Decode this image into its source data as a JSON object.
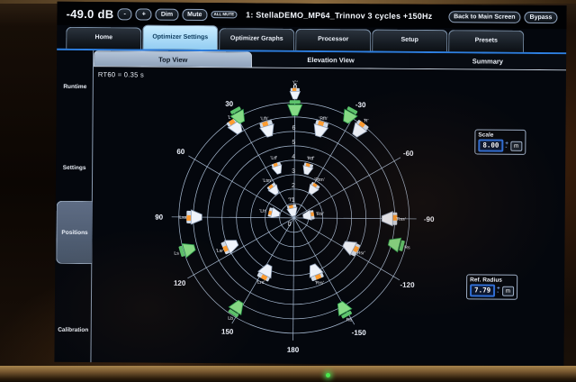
{
  "topbar": {
    "volume_db": "-49.0 dB",
    "minus_label": "-",
    "plus_label": "+",
    "dim_label": "Dim",
    "mute_label": "Mute",
    "mute_all_label": "ALL MUTE",
    "preset_title": "1: StellaDEMO_MP64_Trinnov 3 cycles +150Hz",
    "back_label": "Back to Main Screen",
    "bypass_label": "Bypass"
  },
  "main_tabs": [
    {
      "label": "Home",
      "selected": false
    },
    {
      "label": "Optimizer Settings",
      "selected": true
    },
    {
      "label": "Optimizer Graphs",
      "selected": false
    },
    {
      "label": "Processor",
      "selected": false
    },
    {
      "label": "Setup",
      "selected": false
    },
    {
      "label": "Presets",
      "selected": false
    }
  ],
  "sidebar": {
    "items": [
      {
        "label": "Runtime",
        "selected": false
      },
      {
        "label": "Settings",
        "selected": false
      },
      {
        "label": "Positions",
        "selected": true
      },
      {
        "label": "Calibration",
        "selected": false
      }
    ]
  },
  "view_tabs": [
    {
      "label": "Top View",
      "selected": true
    },
    {
      "label": "Elevation View",
      "selected": false
    },
    {
      "label": "Summary",
      "selected": false
    }
  ],
  "plot": {
    "rt60_text": "RT60 = 0.35 s",
    "ring_labels": [
      "0",
      "1",
      "2",
      "3",
      "4",
      "5",
      "6",
      "7"
    ],
    "rings_total": 8,
    "grid_color": "#a7bad2",
    "angle_labels": [
      {
        "t": "0",
        "a": 0
      },
      {
        "t": "30",
        "a": 30
      },
      {
        "t": "60",
        "a": 60
      },
      {
        "t": "90",
        "a": 90
      },
      {
        "t": "120",
        "a": 120
      },
      {
        "t": "150",
        "a": 150
      },
      {
        "t": "180",
        "a": 180
      },
      {
        "t": "-30",
        "a": -30
      },
      {
        "t": "-60",
        "a": -60
      },
      {
        "t": "-90",
        "a": -90
      },
      {
        "t": "-120",
        "a": -120
      },
      {
        "t": "-150",
        "a": -150
      }
    ],
    "speakers": [
      {
        "label": "'C'",
        "angle": 0,
        "radius": 8.6,
        "type": "white",
        "small": true
      },
      {
        "label": "",
        "angle": 0,
        "radius": 7.6,
        "type": "green",
        "small": false
      },
      {
        "label": "'L'",
        "angle": 33,
        "radius": 7.5,
        "type": "white",
        "small": false
      },
      {
        "label": "",
        "angle": 29,
        "radius": 8.05,
        "type": "green",
        "small": false
      },
      {
        "label": "'R'",
        "angle": -36,
        "radius": 7.6,
        "type": "white",
        "small": false
      },
      {
        "label": "",
        "angle": -28,
        "radius": 8.05,
        "type": "green",
        "small": false
      },
      {
        "label": "'Lfh'",
        "angle": 17,
        "radius": 6.4,
        "type": "white",
        "small": false
      },
      {
        "label": "'Rfh'",
        "angle": -16,
        "radius": 6.4,
        "type": "white",
        "small": false
      },
      {
        "label": "'Lss'",
        "angle": 90,
        "radius": 6.9,
        "type": "white",
        "small": false
      },
      {
        "label": "'Rss'",
        "angle": -90,
        "radius": 6.6,
        "type": "white",
        "small": false
      },
      {
        "label": "Ls",
        "angle": 107,
        "radius": 7.7,
        "type": "green",
        "small": false
      },
      {
        "label": "Rs",
        "angle": -104,
        "radius": 7.3,
        "type": "green",
        "small": false
      },
      {
        "label": "'Lsr'",
        "angle": 114,
        "radius": 4.8,
        "type": "white",
        "small": false
      },
      {
        "label": "'Rsr'",
        "angle": -117,
        "radius": 4.4,
        "type": "white",
        "small": false
      },
      {
        "label": "Lb",
        "angle": 148,
        "radius": 7.4,
        "type": "green",
        "small": false
      },
      {
        "label": "Rb",
        "angle": -151,
        "radius": 7.2,
        "type": "green",
        "small": false
      },
      {
        "label": "'Lrs'",
        "angle": 153,
        "radius": 4.2,
        "type": "white",
        "small": false
      },
      {
        "label": "'Rrs'",
        "angle": -158,
        "radius": 4.0,
        "type": "white",
        "small": false
      },
      {
        "label": "'Ltf'",
        "angle": 19,
        "radius": 3.6,
        "type": "white",
        "small": true
      },
      {
        "label": "'Rtf'",
        "angle": -15,
        "radius": 3.5,
        "type": "white",
        "small": true
      },
      {
        "label": "'Ltm'",
        "angle": 36,
        "radius": 2.4,
        "type": "white",
        "small": true
      },
      {
        "label": "'Rtm'",
        "angle": -33,
        "radius": 2.4,
        "type": "white",
        "small": true
      },
      {
        "label": "'Ltr'",
        "angle": 77,
        "radius": 1.4,
        "type": "white",
        "small": true
      },
      {
        "label": "'Rtr'",
        "angle": -80,
        "radius": 1.0,
        "type": "white",
        "small": true
      },
      {
        "label": "'T'",
        "angle": 12,
        "radius": 0.5,
        "type": "white",
        "small": true
      }
    ],
    "speaker_colors": {
      "measured": "#eef3fb",
      "reference": "#86db86",
      "accent": "#ff9c30"
    }
  },
  "scale_control": {
    "label": "Scale",
    "value": "8.00",
    "up": "+",
    "down": "-",
    "unit": "m"
  },
  "ref_radius_control": {
    "label": "Ref. Radius",
    "value": "7.79",
    "up": "+",
    "down": "-",
    "unit": "m"
  }
}
